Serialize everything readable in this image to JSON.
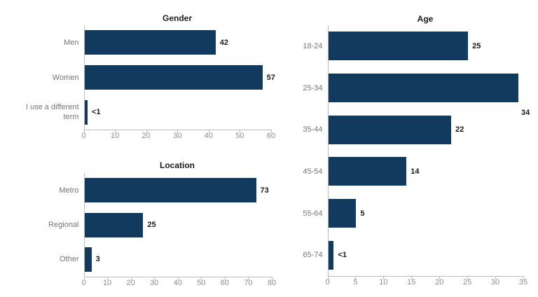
{
  "page": {
    "background": "#ffffff"
  },
  "colors": {
    "bar": "#123a5e",
    "category_label": "#757575",
    "tick_label": "#8c8c8c",
    "value_label": "#1a1a1a",
    "title": "#1a1a1a",
    "axis_line": "#bdbdbd"
  },
  "chart_data": [
    {
      "id": "gender",
      "type": "bar",
      "orientation": "horizontal",
      "title": "Gender",
      "categories": [
        "Men",
        "Women",
        "I use a different term"
      ],
      "values": [
        42,
        57,
        1
      ],
      "value_labels": [
        "42",
        "57",
        "<1"
      ],
      "xlim": [
        0,
        60
      ],
      "xticks": [
        0,
        10,
        20,
        30,
        40,
        50,
        60
      ],
      "grid": false,
      "legend": "none"
    },
    {
      "id": "location",
      "type": "bar",
      "orientation": "horizontal",
      "title": "Location",
      "categories": [
        "Metro",
        "Regional",
        "Other"
      ],
      "values": [
        73,
        25,
        3
      ],
      "value_labels": [
        "73",
        "25",
        "3"
      ],
      "xlim": [
        0,
        80
      ],
      "xticks": [
        0,
        10,
        20,
        30,
        40,
        50,
        60,
        70,
        80
      ],
      "grid": false,
      "legend": "none"
    },
    {
      "id": "age",
      "type": "bar",
      "orientation": "horizontal",
      "title": "Age",
      "categories": [
        "18-24",
        "25-34",
        "35-44",
        "45-54",
        "55-64",
        "65-74"
      ],
      "values": [
        25,
        34,
        22,
        14,
        5,
        1
      ],
      "value_labels": [
        "25",
        "34",
        "22",
        "14",
        "5",
        "<1"
      ],
      "xlim": [
        0,
        35
      ],
      "xticks": [
        0,
        5,
        10,
        15,
        20,
        25,
        30,
        35
      ],
      "grid": false,
      "legend": "none"
    }
  ]
}
